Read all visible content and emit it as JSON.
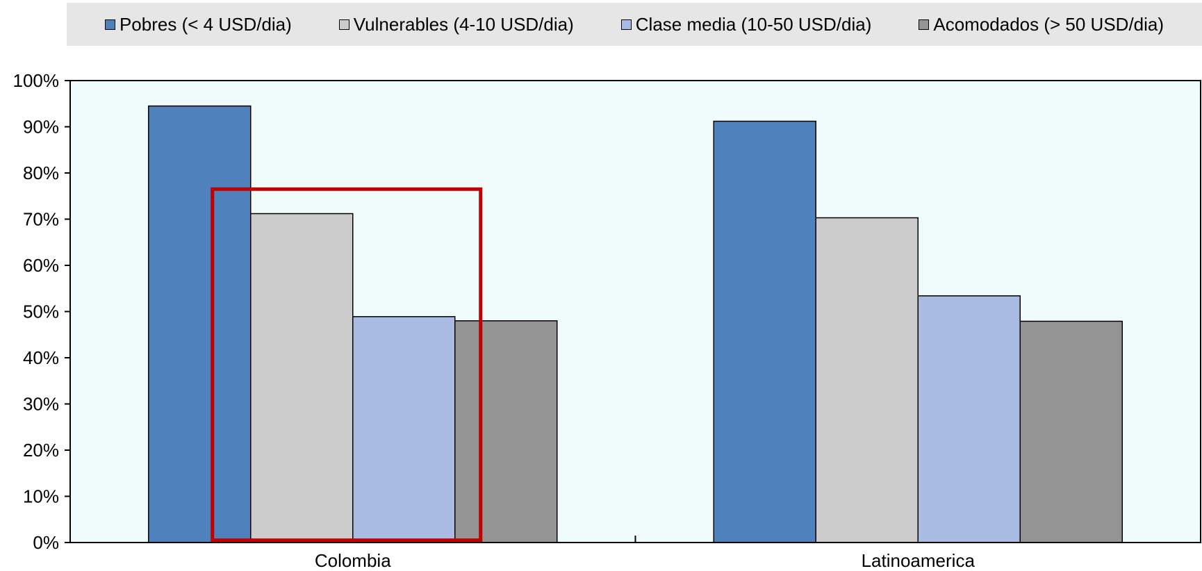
{
  "chart_data": {
    "type": "bar",
    "categories": [
      "Colombia",
      "Latinoamerica"
    ],
    "series": [
      {
        "name": "Pobres (< 4 USD/dia)",
        "color": "#4f81bd",
        "values": [
          94.5,
          91.2
        ]
      },
      {
        "name": "Vulnerables (4-10 USD/dia)",
        "color": "#cccccc",
        "values": [
          71.2,
          70.3
        ]
      },
      {
        "name": "Clase media (10-50 USD/dia)",
        "color": "#a9bae3",
        "values": [
          48.9,
          53.4
        ]
      },
      {
        "name": "Acomodados (> 50 USD/dia)",
        "color": "#949494",
        "values": [
          48.0,
          47.9
        ]
      }
    ],
    "ylim": [
      0,
      100
    ],
    "yticks": [
      "0%",
      "10%",
      "20%",
      "30%",
      "40%",
      "50%",
      "60%",
      "70%",
      "80%",
      "90%",
      "100%"
    ],
    "xlabel": "",
    "ylabel": "",
    "legend_position": "top",
    "grid": false,
    "plot_background": "#f0fcfc",
    "annotation": {
      "type": "highlight-rectangle",
      "color": "#c00000",
      "category": "Colombia",
      "series_from": "Vulnerables (4-10 USD/dia)",
      "series_to": "Clase media (10-50 USD/dia)",
      "y_range": [
        0.5,
        76.5
      ]
    }
  }
}
